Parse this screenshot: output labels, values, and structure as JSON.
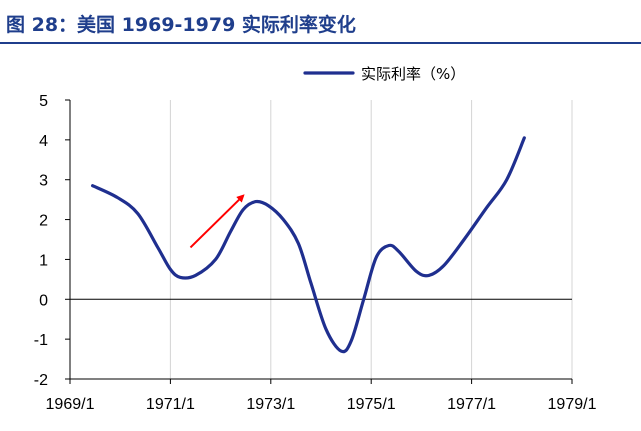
{
  "figure": {
    "title": "图 28：美国 1969-1979 实际利率变化"
  },
  "chart_data": {
    "type": "line",
    "title": "",
    "xlabel": "",
    "ylabel": "",
    "xlim": [
      1969.0,
      1979.0
    ],
    "ylim": [
      -2,
      5
    ],
    "yticks": [
      -2,
      -1,
      0,
      1,
      2,
      3,
      4,
      5
    ],
    "xticks": [
      {
        "label": "1969/1",
        "x": 1969.0
      },
      {
        "label": "1971/1",
        "x": 1971.0
      },
      {
        "label": "1973/1",
        "x": 1973.0
      },
      {
        "label": "1975/1",
        "x": 1975.0
      },
      {
        "label": "1977/1",
        "x": 1977.0
      },
      {
        "label": "1979/1",
        "x": 1979.0
      }
    ],
    "grid": "vertical",
    "legend_position": "top-right",
    "series": [
      {
        "name": "实际利率（%）",
        "color": "#1f2f8f",
        "points": [
          [
            1969.45,
            2.85
          ],
          [
            1969.95,
            2.55
          ],
          [
            1970.35,
            2.15
          ],
          [
            1970.75,
            1.3
          ],
          [
            1971.0,
            0.75
          ],
          [
            1971.2,
            0.55
          ],
          [
            1971.5,
            0.6
          ],
          [
            1971.9,
            1.0
          ],
          [
            1972.2,
            1.7
          ],
          [
            1972.45,
            2.25
          ],
          [
            1972.7,
            2.45
          ],
          [
            1972.95,
            2.35
          ],
          [
            1973.25,
            2.0
          ],
          [
            1973.55,
            1.4
          ],
          [
            1973.8,
            0.4
          ],
          [
            1974.1,
            -0.75
          ],
          [
            1974.4,
            -1.3
          ],
          [
            1974.6,
            -1.05
          ],
          [
            1974.85,
            0.0
          ],
          [
            1975.1,
            1.05
          ],
          [
            1975.35,
            1.35
          ],
          [
            1975.55,
            1.2
          ],
          [
            1975.9,
            0.7
          ],
          [
            1976.15,
            0.6
          ],
          [
            1976.45,
            0.85
          ],
          [
            1976.85,
            1.5
          ],
          [
            1977.3,
            2.3
          ],
          [
            1977.7,
            3.0
          ],
          [
            1978.05,
            4.05
          ]
        ]
      }
    ],
    "annotations": [
      {
        "type": "arrow",
        "color": "#ff0000",
        "from": [
          1971.4,
          1.3
        ],
        "to": [
          1972.45,
          2.6
        ]
      }
    ]
  }
}
